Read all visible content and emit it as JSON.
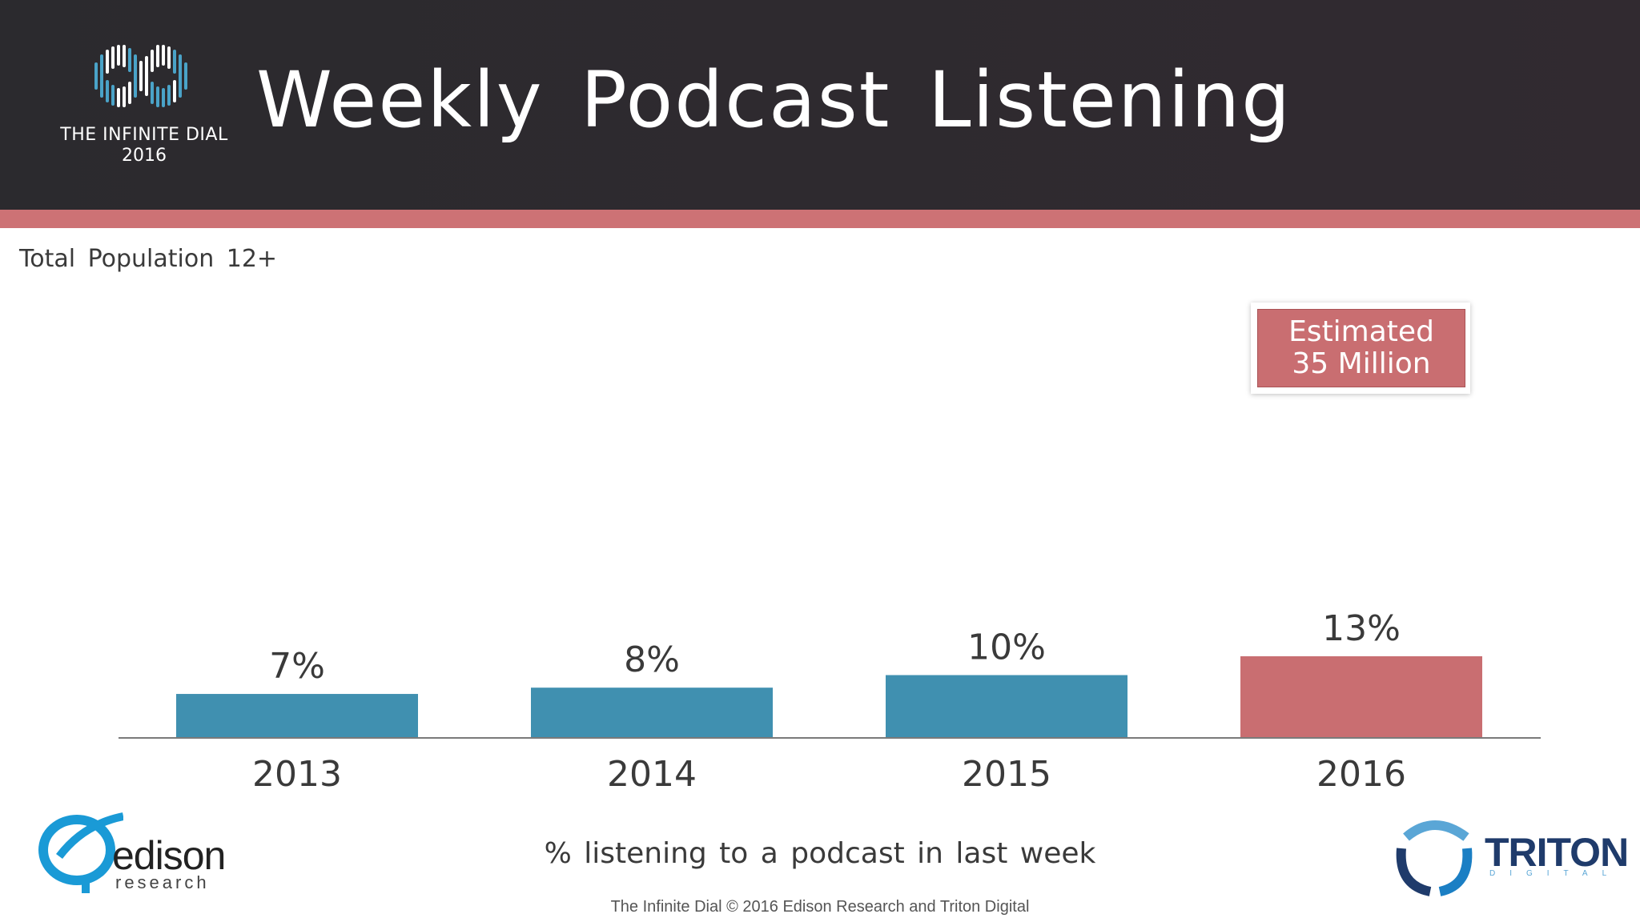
{
  "header": {
    "title": "Weekly Podcast Listening",
    "logo_line1": "THE INFINITE DIAL",
    "logo_line2": "2016"
  },
  "subtitle": "Total Population 12+",
  "callout": {
    "line1": "Estimated",
    "line2": "35 Million"
  },
  "footnote": "% listening to a podcast in last week",
  "copyright": "The Infinite Dial   © 2016 Edison Research and Triton Digital",
  "logos": {
    "edison_word": "edison",
    "edison_sub": "research",
    "triton_word": "TRITON",
    "triton_sub": "DIGITAL"
  },
  "colors": {
    "header_bg": "#2b2a2e",
    "accent": "#cd7275",
    "bar_default": "#4090b0",
    "bar_highlight": "#c96e71"
  },
  "chart_data": {
    "type": "bar",
    "categories": [
      "2013",
      "2014",
      "2015",
      "2016"
    ],
    "values": [
      7,
      8,
      10,
      13
    ],
    "data_labels": [
      "7%",
      "8%",
      "10%",
      "13%"
    ],
    "highlight_index": 3,
    "unit": "%",
    "title": "",
    "xlabel": "% listening to a podcast in last week",
    "ylabel": "",
    "ylim": [
      0,
      13
    ],
    "grid": false,
    "legend": "none"
  }
}
